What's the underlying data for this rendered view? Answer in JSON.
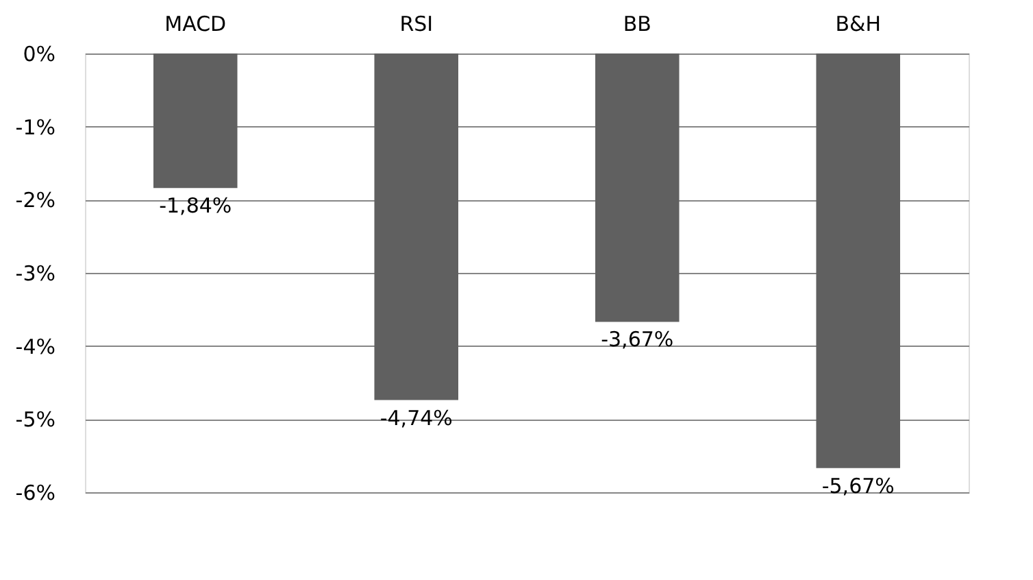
{
  "chart_data": {
    "type": "bar",
    "categories": [
      "MACD",
      "RSI",
      "BB",
      "B&H"
    ],
    "values": [
      -1.84,
      -4.74,
      -3.67,
      -5.67
    ],
    "value_labels": [
      "-1,84%",
      "-4,74%",
      "-3,67%",
      "-5,67%"
    ],
    "color": "#606060",
    "ylim": [
      -6,
      0
    ],
    "yticks": [
      {
        "value": 0,
        "label": "0%"
      },
      {
        "value": -1,
        "label": "-1%"
      },
      {
        "value": -2,
        "label": "-2%"
      },
      {
        "value": -3,
        "label": "-3%"
      },
      {
        "value": -4,
        "label": "-4%"
      },
      {
        "value": -5,
        "label": "-5%"
      },
      {
        "value": -6,
        "label": "-6%"
      }
    ],
    "grid": "y"
  }
}
